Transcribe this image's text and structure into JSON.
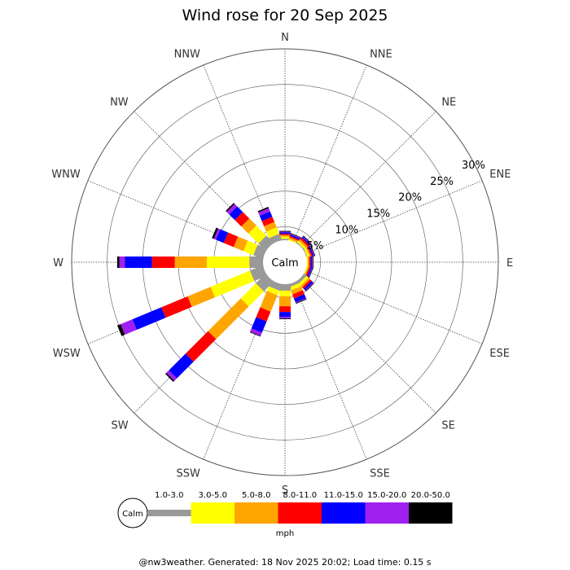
{
  "chart_data": {
    "type": "wind-rose",
    "title": "Wind rose for 20 Sep 2025",
    "calm_label": "Calm",
    "unit_label": "mph",
    "radial_max_percent": 30,
    "radial_ticks": [
      {
        "value": 5,
        "label": "5%"
      },
      {
        "value": 10,
        "label": "10%"
      },
      {
        "value": 15,
        "label": "15%"
      },
      {
        "value": 20,
        "label": "20%"
      },
      {
        "value": 25,
        "label": "25%"
      },
      {
        "value": 30,
        "label": "30%"
      }
    ],
    "directions": [
      "N",
      "NNE",
      "NE",
      "ENE",
      "E",
      "ESE",
      "SE",
      "SSE",
      "S",
      "SSW",
      "SW",
      "WSW",
      "W",
      "WNW",
      "NW",
      "NNW"
    ],
    "speed_bins": [
      {
        "label": "1.0-3.0",
        "color": "#999999"
      },
      {
        "label": "3.0-5.0",
        "color": "#ffff00"
      },
      {
        "label": "5.0-8.0",
        "color": "#ffa500"
      },
      {
        "label": "8.0-11.0",
        "color": "#ff0000"
      },
      {
        "label": "11.0-15.0",
        "color": "#0000ff"
      },
      {
        "label": "15.0-20.0",
        "color": "#a020f0"
      },
      {
        "label": "20.0-50.0",
        "color": "#000000"
      }
    ],
    "series": [
      {
        "direction": "N",
        "cumulative_percent": [
          3.3,
          3.6,
          3.8,
          4.0,
          4.2,
          4.3,
          4.4
        ]
      },
      {
        "direction": "NNE",
        "cumulative_percent": [
          3.0,
          3.2,
          3.5,
          3.7,
          3.9,
          4.0,
          4.1
        ]
      },
      {
        "direction": "NE",
        "cumulative_percent": [
          3.2,
          3.5,
          3.8,
          4.1,
          4.3,
          4.4,
          4.5
        ]
      },
      {
        "direction": "ENE",
        "cumulative_percent": [
          3.2,
          3.5,
          3.7,
          3.9,
          4.1,
          4.2,
          4.3
        ]
      },
      {
        "direction": "E",
        "cumulative_percent": [
          3.0,
          3.2,
          3.4,
          3.6,
          3.8,
          3.9,
          4.0
        ]
      },
      {
        "direction": "ESE",
        "cumulative_percent": [
          3.0,
          3.2,
          3.4,
          3.6,
          3.8,
          3.9,
          4.0
        ]
      },
      {
        "direction": "SE",
        "cumulative_percent": [
          3.5,
          3.9,
          4.2,
          4.5,
          4.8,
          4.9,
          5.0
        ]
      },
      {
        "direction": "SSE",
        "cumulative_percent": [
          3.5,
          4.0,
          4.6,
          5.2,
          5.8,
          5.9,
          6.0
        ]
      },
      {
        "direction": "S",
        "cumulative_percent": [
          4.0,
          4.8,
          6.2,
          7.0,
          7.7,
          7.9,
          8.0
        ]
      },
      {
        "direction": "SSW",
        "cumulative_percent": [
          4.0,
          4.7,
          7.2,
          8.7,
          10.4,
          10.9,
          11.0
        ]
      },
      {
        "direction": "SW",
        "cumulative_percent": [
          5.0,
          8.0,
          14.5,
          19.0,
          22.3,
          22.8,
          23.0
        ]
      },
      {
        "direction": "WSW",
        "cumulative_percent": [
          5.0,
          11.0,
          14.5,
          18.5,
          22.9,
          24.7,
          25.2
        ]
      },
      {
        "direction": "W",
        "cumulative_percent": [
          5.0,
          11.0,
          15.5,
          18.7,
          22.5,
          23.3,
          23.6
        ]
      },
      {
        "direction": "WNW",
        "cumulative_percent": [
          4.5,
          6.0,
          7.5,
          9.0,
          10.2,
          10.5,
          10.8
        ]
      },
      {
        "direction": "NW",
        "cumulative_percent": [
          4.5,
          6.5,
          7.9,
          9.2,
          10.3,
          10.8,
          11.0
        ]
      },
      {
        "direction": "NNW",
        "cumulative_percent": [
          4.0,
          5.0,
          5.8,
          6.6,
          7.4,
          7.9,
          8.1
        ]
      }
    ]
  },
  "footer": "@nw3weather. Generated: 18 Nov 2025 20:02; Load time: 0.15 s"
}
